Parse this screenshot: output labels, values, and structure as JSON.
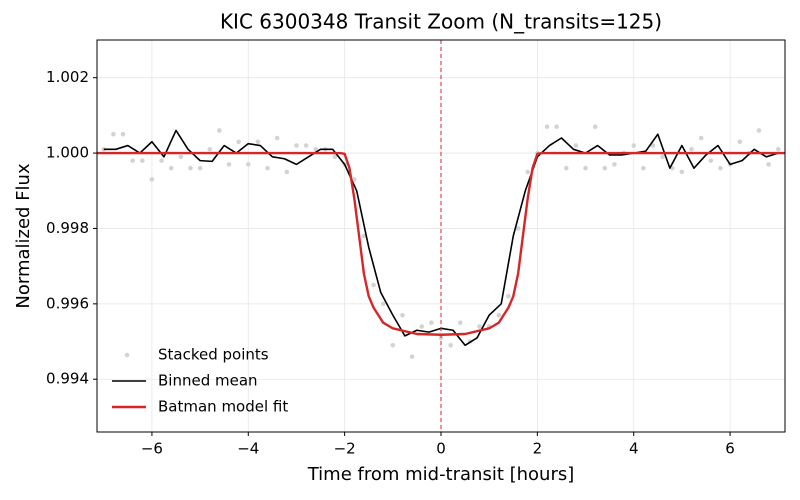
{
  "chart_data": {
    "type": "line",
    "title": "KIC 6300348 Transit Zoom (N_transits=125)",
    "x_label": "Time from mid-transit [hours]",
    "y_label": "Normalized Flux",
    "xlim": [
      -7.14,
      7.14
    ],
    "ylim": [
      0.9926,
      1.003
    ],
    "xticks": [
      {
        "value": -6,
        "label": "−6"
      },
      {
        "value": -4,
        "label": "−4"
      },
      {
        "value": -2,
        "label": "−2"
      },
      0,
      2,
      4,
      6
    ],
    "yticks": [
      0.994,
      0.996,
      0.998,
      {
        "value": 1,
        "label": "1.000"
      },
      1.002
    ],
    "grid": true,
    "legend": "lower left",
    "vline": {
      "x": 0,
      "color": "#d62728"
    },
    "series": [
      {
        "name": "Stacked points",
        "color": "#d3d3d3",
        "mode": "scatter",
        "x": [
          -7.0,
          -6.8,
          -6.6,
          -6.4,
          -6.2,
          -6.0,
          -5.8,
          -5.6,
          -5.4,
          -5.2,
          -5.0,
          -4.8,
          -4.6,
          -4.4,
          -4.2,
          -4.0,
          -3.8,
          -3.6,
          -3.4,
          -3.2,
          -3.0,
          -2.8,
          -2.6,
          -2.4,
          -2.2,
          -2.0,
          -1.8,
          -1.6,
          -1.4,
          -1.2,
          -1.0,
          -0.8,
          -0.6,
          -0.4,
          -0.2,
          0,
          0.2,
          0.4,
          0.6,
          0.8,
          1.0,
          1.2,
          1.4,
          1.6,
          1.8,
          2.0,
          2.2,
          2.4,
          2.6,
          2.8,
          3.0,
          3.2,
          3.4,
          3.6,
          3.8,
          4.0,
          4.2,
          4.4,
          4.6,
          4.8,
          5.0,
          5.2,
          5.4,
          5.6,
          5.8,
          6.0,
          6.2,
          6.4,
          6.6,
          6.8,
          7.0
        ],
        "values": [
          1.0001,
          1.0005,
          1.0005,
          0.9998,
          0.9998,
          0.9993,
          0.9998,
          0.9996,
          0.9999,
          0.9996,
          0.9996,
          1.0001,
          1.0006,
          0.9997,
          1.0003,
          0.9997,
          1.0003,
          0.9996,
          1.0004,
          0.9995,
          1.0002,
          1.0002,
          1.0001,
          1.0001,
          0.9999,
          0.9997,
          0.9993,
          0.9978,
          0.9965,
          0.996,
          0.9949,
          0.9957,
          0.9946,
          0.9954,
          0.9955,
          0.9951,
          0.9949,
          0.9955,
          0.995,
          0.9954,
          0.9954,
          0.9957,
          0.9962,
          0.998,
          0.9995,
          1.0,
          1.0007,
          1.0007,
          0.9996,
          1.0002,
          0.9996,
          1.0007,
          0.9996,
          0.9997,
          1.0,
          1.0002,
          0.9996,
          1.0002,
          0.9999,
          0.9996,
          0.9995,
          1.0001,
          1.0004,
          0.9998,
          0.9996,
          0.9997,
          1.0003,
          1.0,
          1.0006,
          0.9997,
          1.0001
        ]
      },
      {
        "name": "Binned mean",
        "color": "#000000",
        "mode": "line",
        "x": [
          -7,
          -6.75,
          -6.5,
          -6.25,
          -6,
          -5.75,
          -5.5,
          -5.25,
          -5,
          -4.75,
          -4.5,
          -4.25,
          -4,
          -3.75,
          -3.5,
          -3.25,
          -3,
          -2.75,
          -2.5,
          -2.25,
          -2,
          -1.75,
          -1.5,
          -1.25,
          -1,
          -0.75,
          -0.5,
          -0.25,
          0,
          0.25,
          0.5,
          0.75,
          1,
          1.25,
          1.5,
          1.75,
          2,
          2.25,
          2.5,
          2.75,
          3,
          3.25,
          3.5,
          3.75,
          4,
          4.25,
          4.5,
          4.75,
          5,
          5.25,
          5.5,
          5.75,
          6,
          6.25,
          6.5,
          6.75,
          7
        ],
        "values": [
          1.0001,
          1.0001,
          1.0002,
          1.0,
          1.0003,
          0.9999,
          1.0006,
          1.0001,
          0.9998,
          0.99978,
          1.0002,
          1.0,
          1.00025,
          1.0002,
          0.9999,
          0.99985,
          0.9997,
          0.9999,
          1.0001,
          1.0001,
          0.9997,
          0.999,
          0.9975,
          0.9963,
          0.9957,
          0.99515,
          0.9953,
          0.99525,
          0.99535,
          0.9953,
          0.9949,
          0.9951,
          0.9957,
          0.996,
          0.9978,
          0.999,
          0.9999,
          1.0002,
          1.0004,
          1.0001,
          1.0,
          1.0002,
          0.99995,
          0.99995,
          1.0,
          1.00005,
          1.0005,
          0.9996,
          1.0002,
          0.9996,
          0.99995,
          1.0002,
          0.9997,
          0.9998,
          1.0001,
          0.9999,
          1.0
        ]
      },
      {
        "name": "Batman model fit",
        "color": "#d62728",
        "mode": "line",
        "x": [
          -7.14,
          -2.1,
          -2,
          -1.9,
          -1.8,
          -1.7,
          -1.6,
          -1.5,
          -1.4,
          -1.3,
          -1.2,
          -1,
          -0.5,
          0,
          0.5,
          1,
          1.2,
          1.3,
          1.4,
          1.5,
          1.6,
          1.7,
          1.8,
          1.9,
          2,
          2.1,
          7.14
        ],
        "values": [
          1.0,
          1.0,
          0.99998,
          0.9996,
          0.9988,
          0.9978,
          0.9968,
          0.9962,
          0.9959,
          0.9957,
          0.9955,
          0.99535,
          0.9952,
          0.99518,
          0.9952,
          0.99535,
          0.9955,
          0.9957,
          0.9959,
          0.9962,
          0.9968,
          0.9978,
          0.9988,
          0.9996,
          0.99998,
          1.0,
          1.0
        ]
      }
    ]
  }
}
